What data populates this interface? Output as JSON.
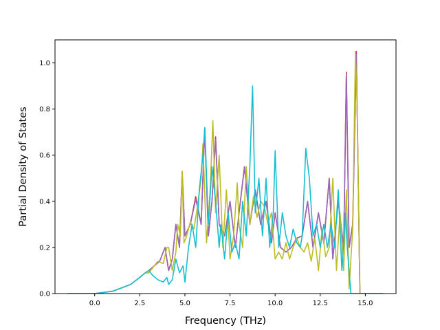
{
  "chart_data": {
    "type": "line",
    "title": "",
    "xlabel": "Frequency (THz)",
    "ylabel": "Partial Density of States",
    "xlim": [
      -2.2,
      16.7
    ],
    "ylim": [
      0.0,
      1.1
    ],
    "xticks": [
      0.0,
      2.5,
      5.0,
      7.5,
      10.0,
      12.5,
      15.0
    ],
    "xtick_labels": [
      "0.0",
      "2.5",
      "5.0",
      "7.5",
      "10.0",
      "12.5",
      "15.0"
    ],
    "yticks": [
      0.0,
      0.2,
      0.4,
      0.6,
      0.8,
      1.0
    ],
    "ytick_labels": [
      "0.0",
      "0.2",
      "0.4",
      "0.6",
      "0.8",
      "1.0"
    ],
    "grid": false,
    "legend": "none",
    "series": [
      {
        "color": "#d62728",
        "x": [
          -1.5,
          0.0,
          1.0,
          2.0,
          2.5,
          2.8,
          3.0,
          3.3,
          3.6,
          3.9,
          4.1,
          4.3,
          4.5,
          4.7,
          4.85,
          5.0,
          5.3,
          5.6,
          5.9,
          6.1,
          6.3,
          6.5,
          6.7,
          6.9,
          7.2,
          7.5,
          7.8,
          8.0,
          8.3,
          8.6,
          8.9,
          9.2,
          9.5,
          9.8,
          10.0,
          10.3,
          10.6,
          10.9,
          11.2,
          11.5,
          11.8,
          12.1,
          12.4,
          12.7,
          13.0,
          13.2,
          13.5,
          13.8,
          13.95,
          14.1,
          14.3,
          14.5,
          14.7,
          16.0
        ],
        "y": [
          0.0,
          0.0,
          0.01,
          0.04,
          0.07,
          0.09,
          0.1,
          0.12,
          0.14,
          0.2,
          0.1,
          0.15,
          0.3,
          0.2,
          0.53,
          0.25,
          0.3,
          0.42,
          0.3,
          0.72,
          0.25,
          0.4,
          0.68,
          0.3,
          0.25,
          0.4,
          0.2,
          0.35,
          0.55,
          0.3,
          0.45,
          0.3,
          0.4,
          0.22,
          0.35,
          0.2,
          0.18,
          0.2,
          0.24,
          0.25,
          0.4,
          0.2,
          0.35,
          0.22,
          0.5,
          0.15,
          0.4,
          0.2,
          0.96,
          0.2,
          0.3,
          1.05,
          0.0,
          0.0
        ]
      },
      {
        "color": "#9467bd",
        "x": [
          -1.5,
          0.0,
          1.0,
          2.0,
          2.5,
          2.8,
          3.0,
          3.3,
          3.6,
          3.9,
          4.1,
          4.3,
          4.5,
          4.7,
          4.85,
          5.0,
          5.3,
          5.6,
          5.9,
          6.1,
          6.3,
          6.5,
          6.7,
          6.9,
          7.2,
          7.5,
          7.8,
          8.0,
          8.3,
          8.6,
          8.9,
          9.2,
          9.5,
          9.8,
          10.0,
          10.3,
          10.6,
          10.9,
          11.2,
          11.5,
          11.8,
          12.1,
          12.4,
          12.7,
          13.0,
          13.2,
          13.5,
          13.8,
          13.95,
          14.1,
          14.3,
          14.5,
          14.7,
          16.0
        ],
        "y": [
          0.0,
          0.0,
          0.01,
          0.04,
          0.07,
          0.09,
          0.1,
          0.12,
          0.14,
          0.2,
          0.1,
          0.15,
          0.3,
          0.2,
          0.52,
          0.25,
          0.3,
          0.41,
          0.3,
          0.71,
          0.25,
          0.4,
          0.67,
          0.3,
          0.25,
          0.4,
          0.2,
          0.35,
          0.55,
          0.3,
          0.45,
          0.3,
          0.4,
          0.22,
          0.35,
          0.2,
          0.18,
          0.2,
          0.24,
          0.25,
          0.4,
          0.2,
          0.35,
          0.22,
          0.5,
          0.15,
          0.4,
          0.2,
          0.95,
          0.2,
          0.3,
          1.04,
          0.0,
          0.0
        ]
      },
      {
        "color": "#bcbd22",
        "x": [
          -1.5,
          0.0,
          1.0,
          2.0,
          2.5,
          2.8,
          3.0,
          3.2,
          3.5,
          3.8,
          4.0,
          4.1,
          4.3,
          4.5,
          4.6,
          4.75,
          4.85,
          4.95,
          5.1,
          5.3,
          5.5,
          5.7,
          5.9,
          6.0,
          6.2,
          6.4,
          6.55,
          6.7,
          6.9,
          7.1,
          7.3,
          7.5,
          7.7,
          7.9,
          8.0,
          8.2,
          8.4,
          8.6,
          8.8,
          9.0,
          9.2,
          9.4,
          9.6,
          9.8,
          10.0,
          10.2,
          10.4,
          10.6,
          10.8,
          11.0,
          11.2,
          11.4,
          11.6,
          11.8,
          12.0,
          12.2,
          12.4,
          12.6,
          12.8,
          13.0,
          13.2,
          13.4,
          13.6,
          13.8,
          13.95,
          14.1,
          14.3,
          14.45,
          14.55,
          14.7,
          16.0
        ],
        "y": [
          0.0,
          0.0,
          0.01,
          0.04,
          0.07,
          0.09,
          0.09,
          0.11,
          0.14,
          0.13,
          0.2,
          0.2,
          0.1,
          0.18,
          0.3,
          0.25,
          0.53,
          0.22,
          0.25,
          0.31,
          0.28,
          0.38,
          0.5,
          0.65,
          0.22,
          0.45,
          0.75,
          0.35,
          0.6,
          0.2,
          0.45,
          0.15,
          0.25,
          0.48,
          0.3,
          0.2,
          0.55,
          0.3,
          0.42,
          0.33,
          0.4,
          0.38,
          0.3,
          0.35,
          0.15,
          0.18,
          0.15,
          0.22,
          0.15,
          0.2,
          0.24,
          0.2,
          0.18,
          0.22,
          0.14,
          0.24,
          0.1,
          0.28,
          0.16,
          0.2,
          0.5,
          0.1,
          0.35,
          0.1,
          0.45,
          0.02,
          0.28,
          1.05,
          0.8,
          0.0,
          0.0
        ]
      },
      {
        "color": "#17becf",
        "x": [
          -1.5,
          0.0,
          1.0,
          2.0,
          2.5,
          2.8,
          3.0,
          3.2,
          3.5,
          3.8,
          4.0,
          4.1,
          4.3,
          4.5,
          4.7,
          4.9,
          5.0,
          5.2,
          5.4,
          5.6,
          5.8,
          6.0,
          6.1,
          6.3,
          6.5,
          6.7,
          6.9,
          7.0,
          7.2,
          7.4,
          7.6,
          7.8,
          8.0,
          8.2,
          8.4,
          8.6,
          8.75,
          8.9,
          9.1,
          9.3,
          9.5,
          9.7,
          9.9,
          10.0,
          10.2,
          10.4,
          10.6,
          10.8,
          11.0,
          11.2,
          11.4,
          11.5,
          11.7,
          11.9,
          12.1,
          12.3,
          12.5,
          12.7,
          12.9,
          13.1,
          13.3,
          13.5,
          13.7,
          13.9,
          14.0,
          14.2,
          14.5,
          14.7,
          16.0
        ],
        "y": [
          0.0,
          0.0,
          0.01,
          0.04,
          0.07,
          0.09,
          0.1,
          0.08,
          0.06,
          0.05,
          0.07,
          0.04,
          0.06,
          0.15,
          0.09,
          0.12,
          0.05,
          0.2,
          0.3,
          0.2,
          0.45,
          0.6,
          0.72,
          0.3,
          0.55,
          0.4,
          0.2,
          0.3,
          0.15,
          0.35,
          0.18,
          0.22,
          0.15,
          0.4,
          0.25,
          0.55,
          0.9,
          0.35,
          0.5,
          0.25,
          0.5,
          0.2,
          0.35,
          0.62,
          0.2,
          0.35,
          0.25,
          0.2,
          0.28,
          0.22,
          0.2,
          0.25,
          0.63,
          0.5,
          0.25,
          0.3,
          0.2,
          0.3,
          0.2,
          0.3,
          0.2,
          0.45,
          0.1,
          0.35,
          0.2,
          0.0,
          0.0,
          0.0,
          0.0
        ]
      }
    ]
  }
}
